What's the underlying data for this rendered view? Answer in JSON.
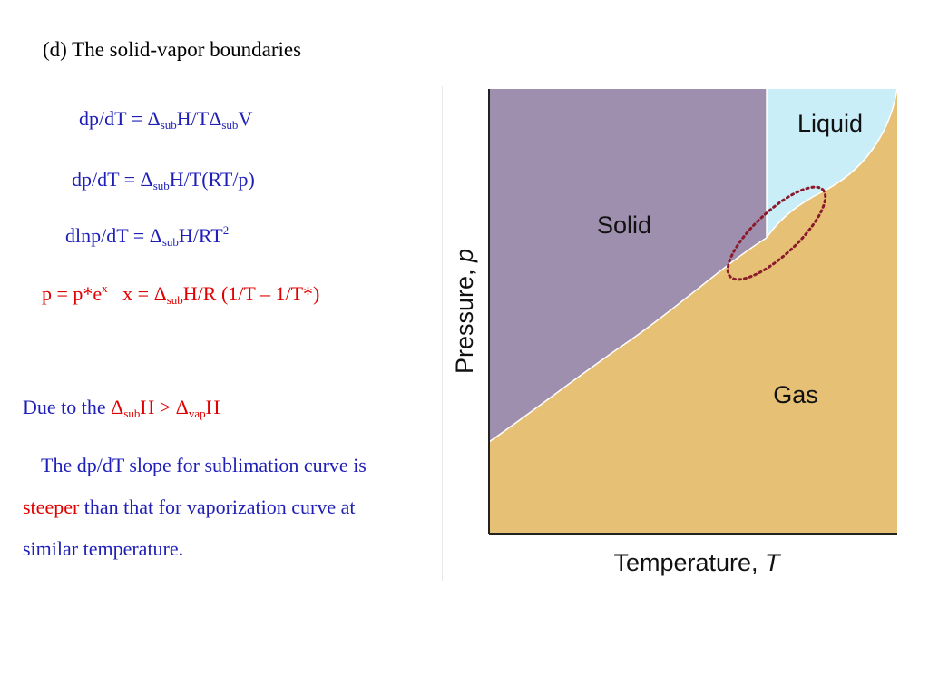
{
  "title": "(d) The solid-vapor boundaries",
  "equations": {
    "eq1": {
      "lhs": "dp/dT = Δ",
      "sub1": "sub",
      "mid": "H/TΔ",
      "sub2": "sub",
      "end": "V"
    },
    "eq2": {
      "lhs": "dp/dT = Δ",
      "sub1": "sub",
      "end": "H/T(RT/p)"
    },
    "eq3": {
      "lhs": "dlnp/dT = Δ",
      "sub1": "sub",
      "end": "H/RT",
      "sup": "2"
    },
    "eq4": {
      "lhs": "p = p*e",
      "sup": "x",
      "mid": "   x = Δ",
      "sub1": "sub",
      "end": "H/R (1/T – 1/T*)"
    }
  },
  "due": {
    "prefix": "Due to the ",
    "d1": "Δ",
    "sub1": "sub",
    "h1": "H > Δ",
    "sub2": "vap",
    "h2": "H"
  },
  "paragraph": {
    "line1": "The dp/dT slope for sublimation curve is",
    "line2_red": "steeper",
    "line2_rest": " than that for vaporization curve at",
    "line3": "similar temperature."
  },
  "diagram": {
    "regions": {
      "liquid": "Liquid",
      "solid": "Solid",
      "gas": "Gas"
    },
    "ylabel_text": "Pressure, ",
    "ylabel_var": "p",
    "xlabel_text": "Temperature, ",
    "xlabel_var": "T",
    "colors": {
      "solid": "#9e8fae",
      "liquid": "#c9eef8",
      "gas": "#e5c075",
      "highlight": "#8b1a2b",
      "axis": "#222222"
    }
  }
}
